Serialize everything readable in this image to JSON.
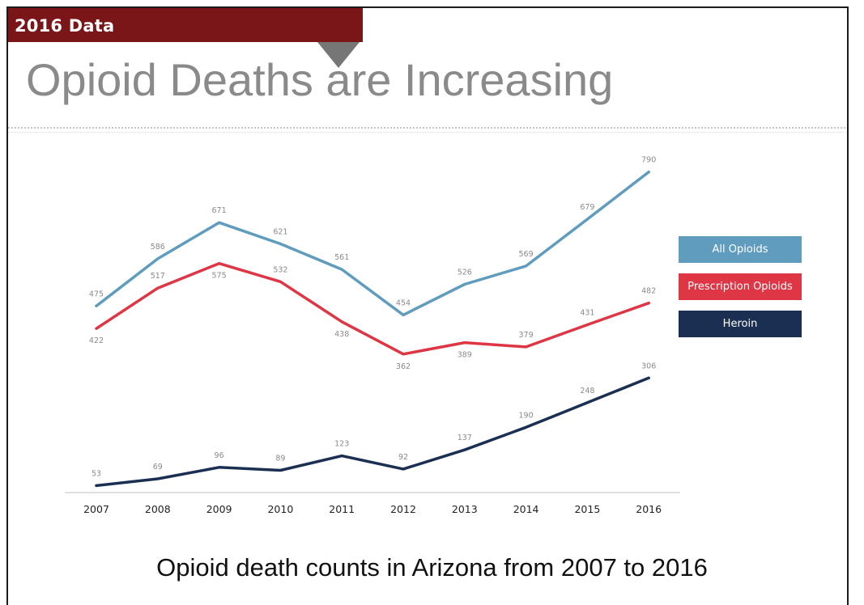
{
  "header": {
    "tag": "2016 Data",
    "title": "Opioid Deaths are Increasing"
  },
  "caption": "Opioid death counts in Arizona from 2007 to 2016",
  "colors": {
    "tag_bg": "#7a1518",
    "all_opioids": "#5f9cbd",
    "prescription_opioids": "#de3645",
    "heroin": "#1b2f52"
  },
  "chart_data": {
    "type": "line",
    "x": [
      "2007",
      "2008",
      "2009",
      "2010",
      "2011",
      "2012",
      "2013",
      "2014",
      "2015",
      "2016"
    ],
    "series": [
      {
        "name": "All Opioids",
        "values": [
          475,
          586,
          671,
          621,
          561,
          454,
          526,
          569,
          679,
          790
        ]
      },
      {
        "name": "Prescription Opioids",
        "values": [
          422,
          517,
          575,
          532,
          438,
          362,
          389,
          379,
          431,
          482
        ]
      },
      {
        "name": "Heroin",
        "values": [
          53,
          69,
          96,
          89,
          123,
          92,
          137,
          190,
          248,
          306
        ]
      }
    ],
    "title": "",
    "xlabel": "",
    "ylabel": "",
    "ylim": [
      0,
      850
    ],
    "grid": false,
    "legend": "right"
  }
}
